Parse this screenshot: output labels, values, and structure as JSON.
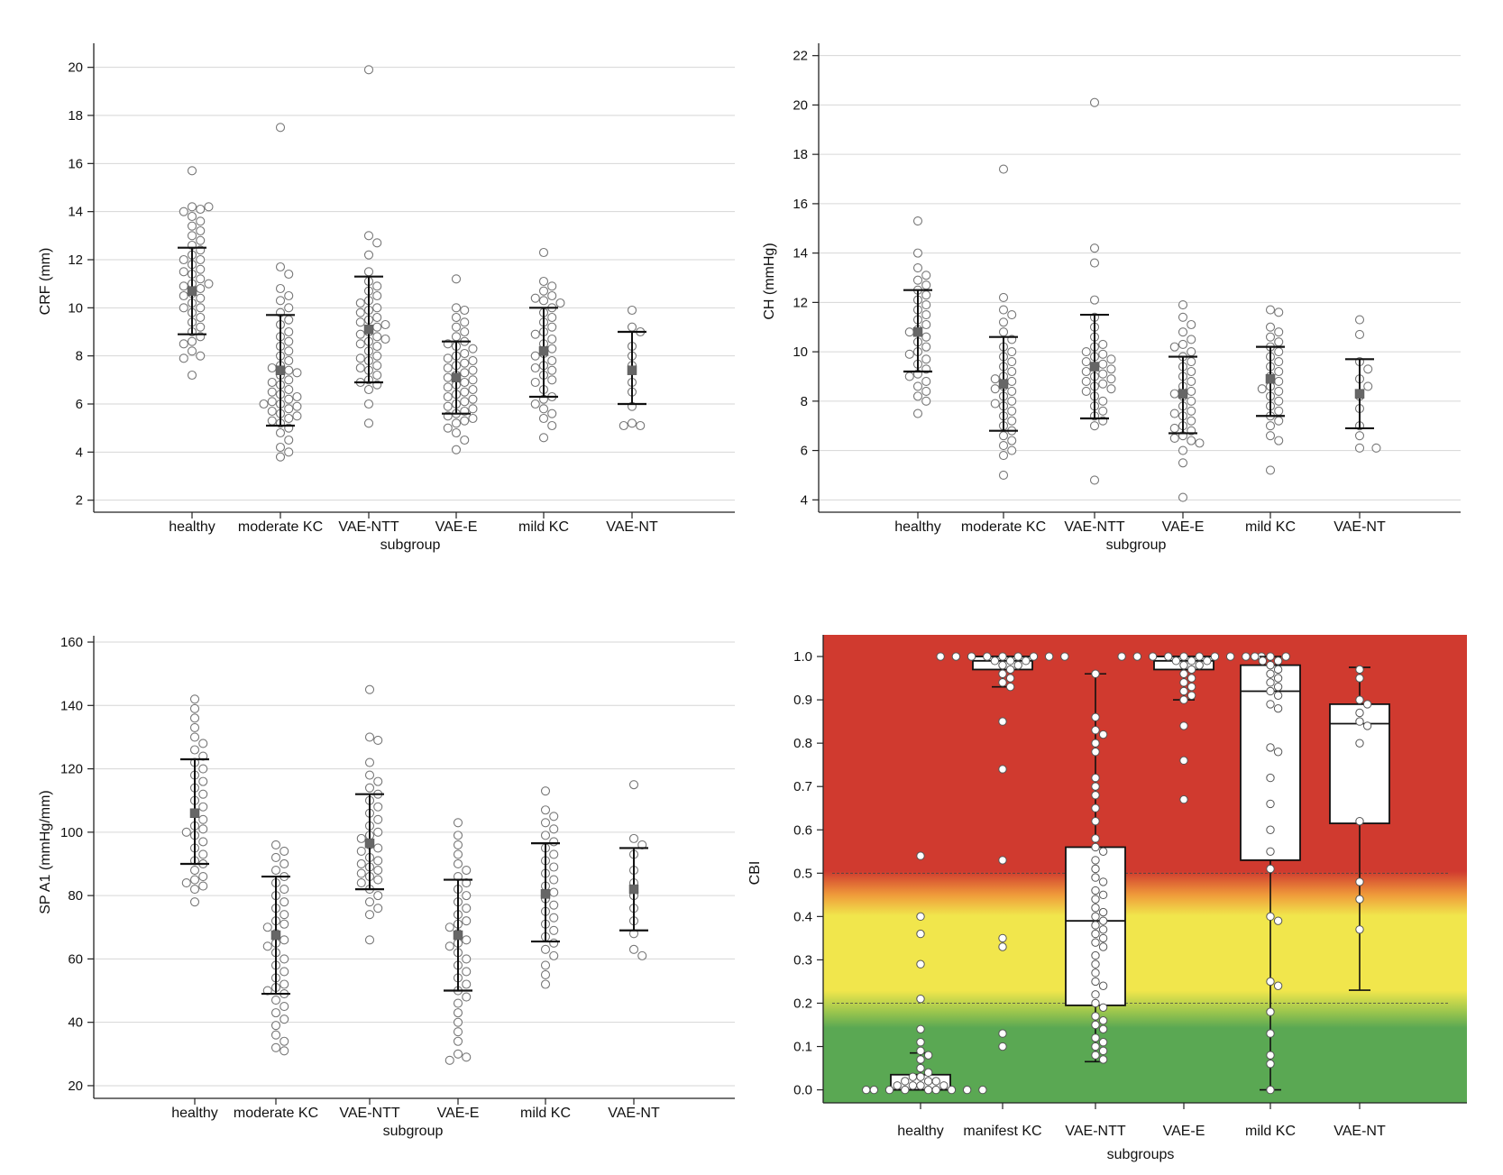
{
  "chart_data": [
    {
      "type": "scatter",
      "title": "",
      "xlabel": "subgroup",
      "ylabel": "CRF (mm)",
      "categories": [
        "healthy",
        "moderate KC",
        "VAE-NTT",
        "VAE-E",
        "mild KC",
        "VAE-NT"
      ],
      "ylim": [
        1.5,
        21
      ],
      "yticks": [
        2,
        4,
        6,
        8,
        10,
        12,
        14,
        16,
        18,
        20
      ],
      "grid": true,
      "groups": [
        {
          "category": "healthy",
          "mean": 10.7,
          "sd_low": 8.9,
          "sd_high": 12.5,
          "points": [
            15.7,
            14.2,
            14.2,
            14.1,
            14.0,
            13.8,
            13.6,
            13.4,
            13.2,
            13.0,
            12.8,
            12.6,
            12.4,
            12.2,
            12.0,
            12.0,
            11.8,
            11.6,
            11.5,
            11.4,
            11.2,
            11.0,
            11.0,
            10.9,
            10.8,
            10.6,
            10.5,
            10.4,
            10.2,
            10.0,
            10.0,
            9.8,
            9.6,
            9.4,
            9.2,
            9.0,
            8.8,
            8.6,
            8.5,
            8.2,
            8.0,
            7.9,
            7.2
          ]
        },
        {
          "category": "moderate KC",
          "mean": 7.4,
          "sd_low": 5.1,
          "sd_high": 9.7,
          "points": [
            17.5,
            11.7,
            11.4,
            10.8,
            10.5,
            10.3,
            10.0,
            9.8,
            9.5,
            9.3,
            9.0,
            8.8,
            8.6,
            8.4,
            8.2,
            8.0,
            7.8,
            7.6,
            7.5,
            7.4,
            7.3,
            7.2,
            7.0,
            6.9,
            6.8,
            6.6,
            6.5,
            6.4,
            6.3,
            6.2,
            6.1,
            6.0,
            6.0,
            5.9,
            5.8,
            5.7,
            5.6,
            5.5,
            5.4,
            5.3,
            5.2,
            5.0,
            4.8,
            4.5,
            4.2,
            4.0,
            3.8
          ]
        },
        {
          "category": "VAE-NTT",
          "mean": 9.1,
          "sd_low": 6.9,
          "sd_high": 11.3,
          "points": [
            19.9,
            13.0,
            12.7,
            12.2,
            11.5,
            11.1,
            10.9,
            10.7,
            10.5,
            10.3,
            10.2,
            10.0,
            9.9,
            9.8,
            9.6,
            9.5,
            9.4,
            9.3,
            9.2,
            9.0,
            8.9,
            8.8,
            8.7,
            8.6,
            8.5,
            8.4,
            8.2,
            8.0,
            7.9,
            7.8,
            7.6,
            7.5,
            7.4,
            7.2,
            7.0,
            6.9,
            6.8,
            6.6,
            6.0,
            5.2
          ]
        },
        {
          "category": "VAE-E",
          "mean": 7.1,
          "sd_low": 5.6,
          "sd_high": 8.6,
          "points": [
            11.2,
            10.0,
            9.9,
            9.6,
            9.4,
            9.2,
            9.0,
            8.8,
            8.6,
            8.5,
            8.4,
            8.3,
            8.1,
            8.0,
            7.9,
            7.8,
            7.7,
            7.6,
            7.5,
            7.4,
            7.3,
            7.2,
            7.1,
            7.0,
            6.9,
            6.8,
            6.7,
            6.6,
            6.5,
            6.4,
            6.3,
            6.2,
            6.1,
            6.0,
            5.9,
            5.8,
            5.7,
            5.6,
            5.5,
            5.4,
            5.3,
            5.2,
            5.0,
            4.8,
            4.5,
            4.1
          ]
        },
        {
          "category": "mild KC",
          "mean": 8.2,
          "sd_low": 6.3,
          "sd_high": 10.0,
          "points": [
            12.3,
            11.1,
            10.9,
            10.7,
            10.5,
            10.4,
            10.3,
            10.2,
            10.0,
            9.8,
            9.6,
            9.4,
            9.2,
            9.0,
            8.9,
            8.7,
            8.5,
            8.3,
            8.1,
            8.0,
            7.8,
            7.6,
            7.5,
            7.4,
            7.2,
            7.0,
            6.9,
            6.6,
            6.3,
            6.2,
            6.0,
            5.8,
            5.6,
            5.4,
            5.1,
            4.6
          ]
        },
        {
          "category": "VAE-NT",
          "mean": 7.4,
          "sd_low": 6.0,
          "sd_high": 9.0,
          "points": [
            9.9,
            9.2,
            9.0,
            8.4,
            8.0,
            7.6,
            6.9,
            6.5,
            5.9,
            5.2,
            5.1,
            5.1
          ]
        }
      ]
    },
    {
      "type": "scatter",
      "title": "",
      "xlabel": "subgroup",
      "ylabel": "CH (mmHg)",
      "categories": [
        "healthy",
        "moderate KC",
        "VAE-NTT",
        "VAE-E",
        "mild KC",
        "VAE-NT"
      ],
      "ylim": [
        3.5,
        22.5
      ],
      "yticks": [
        4,
        6,
        8,
        10,
        12,
        14,
        16,
        18,
        20,
        22
      ],
      "grid": true,
      "groups": [
        {
          "category": "healthy",
          "mean": 10.8,
          "sd_low": 9.2,
          "sd_high": 12.5,
          "points": [
            15.3,
            14.0,
            13.4,
            13.1,
            12.9,
            12.7,
            12.5,
            12.3,
            12.1,
            11.9,
            11.7,
            11.5,
            11.3,
            11.1,
            10.9,
            10.8,
            10.6,
            10.4,
            10.2,
            10.0,
            9.9,
            9.7,
            9.5,
            9.3,
            9.1,
            9.0,
            8.8,
            8.6,
            8.4,
            8.2,
            8.0,
            7.5
          ]
        },
        {
          "category": "moderate KC",
          "mean": 8.7,
          "sd_low": 6.8,
          "sd_high": 10.6,
          "points": [
            17.4,
            12.2,
            11.7,
            11.5,
            11.2,
            10.8,
            10.5,
            10.2,
            10.0,
            9.8,
            9.6,
            9.4,
            9.2,
            9.0,
            8.9,
            8.8,
            8.6,
            8.5,
            8.4,
            8.2,
            8.0,
            7.9,
            7.8,
            7.6,
            7.4,
            7.2,
            7.0,
            6.8,
            6.6,
            6.4,
            6.2,
            6.0,
            5.8,
            5.0
          ]
        },
        {
          "category": "VAE-NTT",
          "mean": 9.4,
          "sd_low": 7.3,
          "sd_high": 11.5,
          "points": [
            20.1,
            14.2,
            13.6,
            12.1,
            11.4,
            11.0,
            10.6,
            10.3,
            10.2,
            10.0,
            9.9,
            9.8,
            9.7,
            9.6,
            9.5,
            9.4,
            9.3,
            9.2,
            9.1,
            9.0,
            8.9,
            8.8,
            8.7,
            8.6,
            8.5,
            8.4,
            8.2,
            8.0,
            7.8,
            7.6,
            7.4,
            7.2,
            7.0,
            4.8
          ]
        },
        {
          "category": "VAE-E",
          "mean": 8.3,
          "sd_low": 6.7,
          "sd_high": 9.8,
          "points": [
            11.9,
            11.4,
            11.1,
            10.8,
            10.5,
            10.3,
            10.2,
            10.0,
            9.8,
            9.6,
            9.4,
            9.2,
            9.0,
            8.8,
            8.6,
            8.4,
            8.3,
            8.2,
            8.0,
            7.8,
            7.6,
            7.5,
            7.4,
            7.2,
            7.0,
            6.9,
            6.8,
            6.6,
            6.5,
            6.4,
            6.3,
            6.0,
            5.5,
            4.1
          ]
        },
        {
          "category": "mild KC",
          "mean": 8.9,
          "sd_low": 7.4,
          "sd_high": 10.2,
          "points": [
            11.7,
            11.6,
            11.0,
            10.8,
            10.6,
            10.4,
            10.2,
            10.0,
            9.8,
            9.6,
            9.4,
            9.2,
            9.0,
            8.8,
            8.6,
            8.5,
            8.4,
            8.2,
            8.0,
            7.8,
            7.6,
            7.4,
            7.2,
            7.0,
            6.6,
            6.4,
            5.2
          ]
        },
        {
          "category": "VAE-NT",
          "mean": 8.3,
          "sd_low": 6.9,
          "sd_high": 9.7,
          "points": [
            11.3,
            10.7,
            9.6,
            9.3,
            8.9,
            8.6,
            8.2,
            7.7,
            7.0,
            6.6,
            6.1,
            6.1
          ]
        }
      ]
    },
    {
      "type": "scatter",
      "title": "",
      "xlabel": "subgroup",
      "ylabel": "SP A1 (mmHg/mm)",
      "categories": [
        "healthy",
        "moderate KC",
        "VAE-NTT",
        "VAE-E",
        "mild KC",
        "VAE-NT"
      ],
      "ylim": [
        16,
        162
      ],
      "yticks": [
        20,
        40,
        60,
        80,
        100,
        120,
        140,
        160
      ],
      "grid": true,
      "groups": [
        {
          "category": "healthy",
          "mean": 106,
          "sd_low": 90,
          "sd_high": 123,
          "points": [
            142,
            139,
            136,
            133,
            130,
            128,
            126,
            124,
            122,
            120,
            118,
            116,
            114,
            112,
            110,
            108,
            106,
            104,
            102,
            101,
            100,
            99,
            97,
            95,
            93,
            91,
            90,
            88,
            86,
            85,
            84,
            83,
            82,
            78
          ]
        },
        {
          "category": "moderate KC",
          "mean": 67.5,
          "sd_low": 49,
          "sd_high": 86,
          "points": [
            96,
            94,
            92,
            90,
            88,
            86,
            84,
            82,
            80,
            78,
            76,
            74,
            72,
            71,
            70,
            68,
            66,
            65,
            64,
            62,
            60,
            58,
            56,
            54,
            52,
            51,
            50,
            49,
            47,
            45,
            43,
            41,
            39,
            36,
            34,
            32,
            31
          ]
        },
        {
          "category": "VAE-NTT",
          "mean": 96.5,
          "sd_low": 82,
          "sd_high": 112,
          "points": [
            145,
            130,
            129,
            122,
            118,
            116,
            114,
            112,
            110,
            108,
            106,
            104,
            102,
            100,
            99,
            98,
            96,
            95,
            94,
            92,
            91,
            90,
            89,
            88,
            87,
            86,
            85,
            84,
            82,
            80,
            78,
            76,
            74,
            66
          ]
        },
        {
          "category": "VAE-E",
          "mean": 67.5,
          "sd_low": 50,
          "sd_high": 85,
          "points": [
            103,
            99,
            96,
            93,
            90,
            88,
            86,
            84,
            82,
            80,
            78,
            76,
            74,
            72,
            71,
            70,
            68,
            66,
            65,
            64,
            62,
            60,
            58,
            56,
            54,
            52,
            50,
            48,
            46,
            43,
            40,
            37,
            34,
            30,
            29,
            28
          ]
        },
        {
          "category": "mild KC",
          "mean": 80.5,
          "sd_low": 65.5,
          "sd_high": 96.5,
          "points": [
            113,
            107,
            105,
            103,
            101,
            99,
            97,
            95,
            93,
            91,
            89,
            87,
            85,
            83,
            81,
            79,
            77,
            75,
            73,
            71,
            69,
            67,
            65,
            63,
            61,
            58,
            55,
            52
          ]
        },
        {
          "category": "VAE-NT",
          "mean": 82,
          "sd_low": 69,
          "sd_high": 95,
          "points": [
            115,
            98,
            96,
            93,
            88,
            84,
            80,
            76,
            72,
            68,
            63,
            61
          ]
        }
      ]
    },
    {
      "type": "box",
      "title": "",
      "xlabel": "subgroups",
      "ylabel": "CBI",
      "categories": [
        "healthy",
        "manifest KC",
        "VAE-NTT",
        "VAE-E",
        "mild KC",
        "VAE-NT"
      ],
      "ylim": [
        -0.03,
        1.05
      ],
      "yticks": [
        "0.0",
        "0.1",
        "0.2",
        "0.3",
        "0.4",
        "0.5",
        "0.6",
        "0.7",
        "0.8",
        "0.9",
        "1.0"
      ],
      "reference_lines": [
        0.2,
        0.5
      ],
      "background_zones": [
        {
          "from": 0.0,
          "to": 0.2,
          "color": "#5aa853"
        },
        {
          "from": 0.2,
          "to": 0.5,
          "color": "#f0e64a"
        },
        {
          "from": 0.5,
          "to": 1.05,
          "color": "#cf3a2f"
        }
      ],
      "groups": [
        {
          "category": "healthy",
          "whisker_low": 0.0,
          "q1": 0.0,
          "median": 0.0,
          "q3": 0.035,
          "whisker_high": 0.085,
          "points": [
            0.54,
            0.4,
            0.36,
            0.29,
            0.21,
            0.14,
            0.11,
            0.09,
            0.08,
            0.07,
            0.05,
            0.04,
            0.03,
            0.03,
            0.02,
            0.02,
            0.02,
            0.01,
            0.01,
            0.01,
            0.01,
            0.0,
            0.0,
            0.0,
            0.0,
            0.0,
            0.0,
            0.0,
            0.0,
            0.0
          ]
        },
        {
          "category": "manifest KC",
          "whisker_low": 0.93,
          "q1": 0.97,
          "median": 0.99,
          "q3": 1.0,
          "whisker_high": 1.0,
          "points": [
            1.0,
            1.0,
            1.0,
            1.0,
            1.0,
            1.0,
            1.0,
            1.0,
            1.0,
            0.99,
            0.99,
            0.99,
            0.98,
            0.98,
            0.97,
            0.96,
            0.95,
            0.94,
            0.93,
            0.85,
            0.74,
            0.53,
            0.35,
            0.33,
            0.13,
            0.1
          ]
        },
        {
          "category": "VAE-NTT",
          "whisker_low": 0.065,
          "q1": 0.195,
          "median": 0.39,
          "q3": 0.56,
          "whisker_high": 0.96,
          "points": [
            0.96,
            0.86,
            0.83,
            0.82,
            0.8,
            0.78,
            0.72,
            0.7,
            0.68,
            0.65,
            0.62,
            0.58,
            0.56,
            0.55,
            0.53,
            0.51,
            0.49,
            0.48,
            0.46,
            0.45,
            0.44,
            0.42,
            0.41,
            0.4,
            0.39,
            0.38,
            0.37,
            0.36,
            0.35,
            0.34,
            0.33,
            0.31,
            0.29,
            0.27,
            0.25,
            0.24,
            0.22,
            0.2,
            0.19,
            0.17,
            0.16,
            0.15,
            0.14,
            0.12,
            0.11,
            0.1,
            0.09,
            0.08,
            0.07
          ]
        },
        {
          "category": "VAE-E",
          "whisker_low": 0.9,
          "q1": 0.97,
          "median": 0.99,
          "q3": 1.0,
          "whisker_high": 1.0,
          "points": [
            1.0,
            1.0,
            1.0,
            1.0,
            1.0,
            1.0,
            1.0,
            1.0,
            1.0,
            1.0,
            0.99,
            0.99,
            0.99,
            0.98,
            0.98,
            0.97,
            0.96,
            0.95,
            0.94,
            0.93,
            0.92,
            0.91,
            0.9,
            0.84,
            0.76,
            0.67
          ]
        },
        {
          "category": "mild KC",
          "whisker_low": 0.0,
          "q1": 0.53,
          "median": 0.92,
          "q3": 0.98,
          "whisker_high": 1.0,
          "points": [
            1.0,
            1.0,
            1.0,
            0.99,
            0.99,
            0.98,
            0.97,
            0.96,
            0.95,
            0.94,
            0.93,
            0.92,
            0.91,
            0.89,
            0.88,
            0.79,
            0.78,
            0.72,
            0.66,
            0.6,
            0.55,
            0.51,
            0.4,
            0.39,
            0.25,
            0.24,
            0.18,
            0.13,
            0.08,
            0.06,
            0.0
          ]
        },
        {
          "category": "VAE-NT",
          "whisker_low": 0.23,
          "q1": 0.615,
          "median": 0.845,
          "q3": 0.89,
          "whisker_high": 0.975,
          "points": [
            0.97,
            0.95,
            0.9,
            0.89,
            0.87,
            0.85,
            0.84,
            0.8,
            0.62,
            0.48,
            0.44,
            0.37
          ]
        }
      ]
    }
  ]
}
